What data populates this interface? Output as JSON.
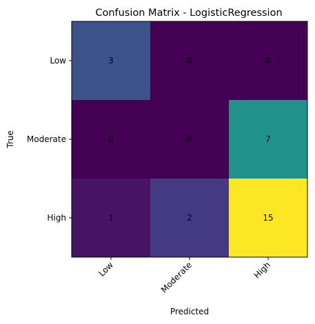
{
  "chart_data": {
    "type": "heatmap",
    "title": "Confusion Matrix - LogisticRegression",
    "xlabel": "Predicted",
    "ylabel": "True",
    "x_categories": [
      "Low",
      "Moderate",
      "High"
    ],
    "y_categories": [
      "Low",
      "Moderate",
      "High"
    ],
    "values": [
      [
        3,
        0,
        0
      ],
      [
        0,
        0,
        7
      ],
      [
        1,
        2,
        15
      ]
    ],
    "colormap": "viridis",
    "vmin": 0,
    "vmax": 15,
    "cell_colors": [
      [
        "#3b528b",
        "#440154",
        "#440154"
      ],
      [
        "#440154",
        "#440154",
        "#21918c"
      ],
      [
        "#471365",
        "#443983",
        "#fde725"
      ]
    ],
    "x_tick_rotation_deg": 45,
    "grid": false,
    "legend": "none"
  }
}
